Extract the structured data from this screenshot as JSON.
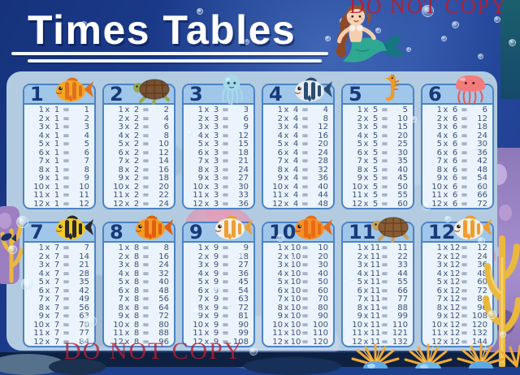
{
  "title": "Times Tables",
  "watermark_top": "DO NOT COPY",
  "watermark_bottom": "DO NOT COPY",
  "symbols": {
    "times": "x",
    "equals": "="
  },
  "multipliers": [
    1,
    2,
    3,
    4,
    5,
    6,
    7,
    8,
    9,
    10,
    11,
    12
  ],
  "palette": {
    "background_blue": "#1c3f8e",
    "panel_blue": "#b2cbe0",
    "card_body": "#ebf4fc",
    "card_header_blue": "#a0c6ea",
    "card_border_blue": "#4c83c4",
    "number_navy": "#183a7a",
    "equation_text": "#3d5175",
    "watermark_red": "#b51f33",
    "mermaid_tail_teal": "#2fa893",
    "coral_purple": "#9b7fc0",
    "coral_yellow": "#e9b83e",
    "anemone_orange": "#f1a93a"
  },
  "tables": [
    {
      "number": "1",
      "creature": "goldfish",
      "icon": "fish",
      "body_color": "#f6a525",
      "stripe_color": "#e0711c",
      "products": [
        1,
        2,
        3,
        4,
        5,
        6,
        7,
        8,
        9,
        10,
        11,
        12
      ]
    },
    {
      "number": "2",
      "creature": "sea-turtle",
      "icon": "turtle",
      "body_color": "#7a5230",
      "stripe_color": "#96a850",
      "products": [
        2,
        4,
        6,
        8,
        10,
        12,
        14,
        16,
        18,
        20,
        22,
        24
      ]
    },
    {
      "number": "3",
      "creature": "squid",
      "icon": "squid",
      "body_color": "#a5d9ea",
      "stripe_color": "#79c2d8",
      "products": [
        3,
        6,
        9,
        12,
        15,
        18,
        21,
        24,
        27,
        30,
        33,
        36
      ]
    },
    {
      "number": "4",
      "creature": "striped-fish",
      "icon": "fish",
      "body_color": "#e9edf1",
      "stripe_color": "#2a4d74",
      "products": [
        4,
        8,
        12,
        16,
        20,
        24,
        28,
        32,
        36,
        40,
        44,
        48
      ]
    },
    {
      "number": "5",
      "creature": "seahorse",
      "icon": "seahorse",
      "body_color": "#f09a28",
      "stripe_color": "#d87a14",
      "products": [
        5,
        10,
        15,
        20,
        25,
        30,
        35,
        40,
        45,
        50,
        55,
        60
      ]
    },
    {
      "number": "6",
      "creature": "jellyfish",
      "icon": "jellyfish",
      "body_color": "#f27c7c",
      "stripe_color": "#e65b5b",
      "products": [
        6,
        12,
        18,
        24,
        30,
        36,
        42,
        48,
        54,
        60,
        66,
        72
      ]
    },
    {
      "number": "7",
      "creature": "bumblebee-fish",
      "icon": "fish",
      "body_color": "#f2c829",
      "stripe_color": "#2a2a2a",
      "products": [
        7,
        14,
        21,
        28,
        35,
        42,
        49,
        56,
        63,
        70,
        77,
        84
      ]
    },
    {
      "number": "8",
      "creature": "pufferfish",
      "icon": "fish",
      "body_color": "#f59b22",
      "stripe_color": "#e05e12",
      "products": [
        8,
        16,
        24,
        32,
        40,
        48,
        56,
        64,
        72,
        80,
        88,
        96
      ]
    },
    {
      "number": "9",
      "creature": "clownfish",
      "icon": "fish",
      "body_color": "#f6f0e4",
      "stripe_color": "#ec9f38",
      "products": [
        9,
        18,
        27,
        36,
        45,
        54,
        63,
        72,
        81,
        90,
        99,
        108
      ]
    },
    {
      "number": "10",
      "creature": "goldfish",
      "icon": "fish",
      "body_color": "#f78f2a",
      "stripe_color": "#e86c14",
      "products": [
        10,
        20,
        30,
        40,
        50,
        60,
        70,
        80,
        90,
        100,
        110,
        120
      ]
    },
    {
      "number": "11",
      "creature": "sea-turtle",
      "icon": "turtle",
      "body_color": "#8a5c34",
      "stripe_color": "#c9a258",
      "products": [
        11,
        22,
        33,
        44,
        55,
        66,
        77,
        88,
        99,
        110,
        121,
        132
      ]
    },
    {
      "number": "12",
      "creature": "butterflyfish",
      "icon": "fish",
      "body_color": "#f6efe2",
      "stripe_color": "#ee9c2e",
      "products": [
        12,
        24,
        36,
        48,
        60,
        72,
        84,
        96,
        108,
        120,
        132,
        144
      ]
    }
  ]
}
